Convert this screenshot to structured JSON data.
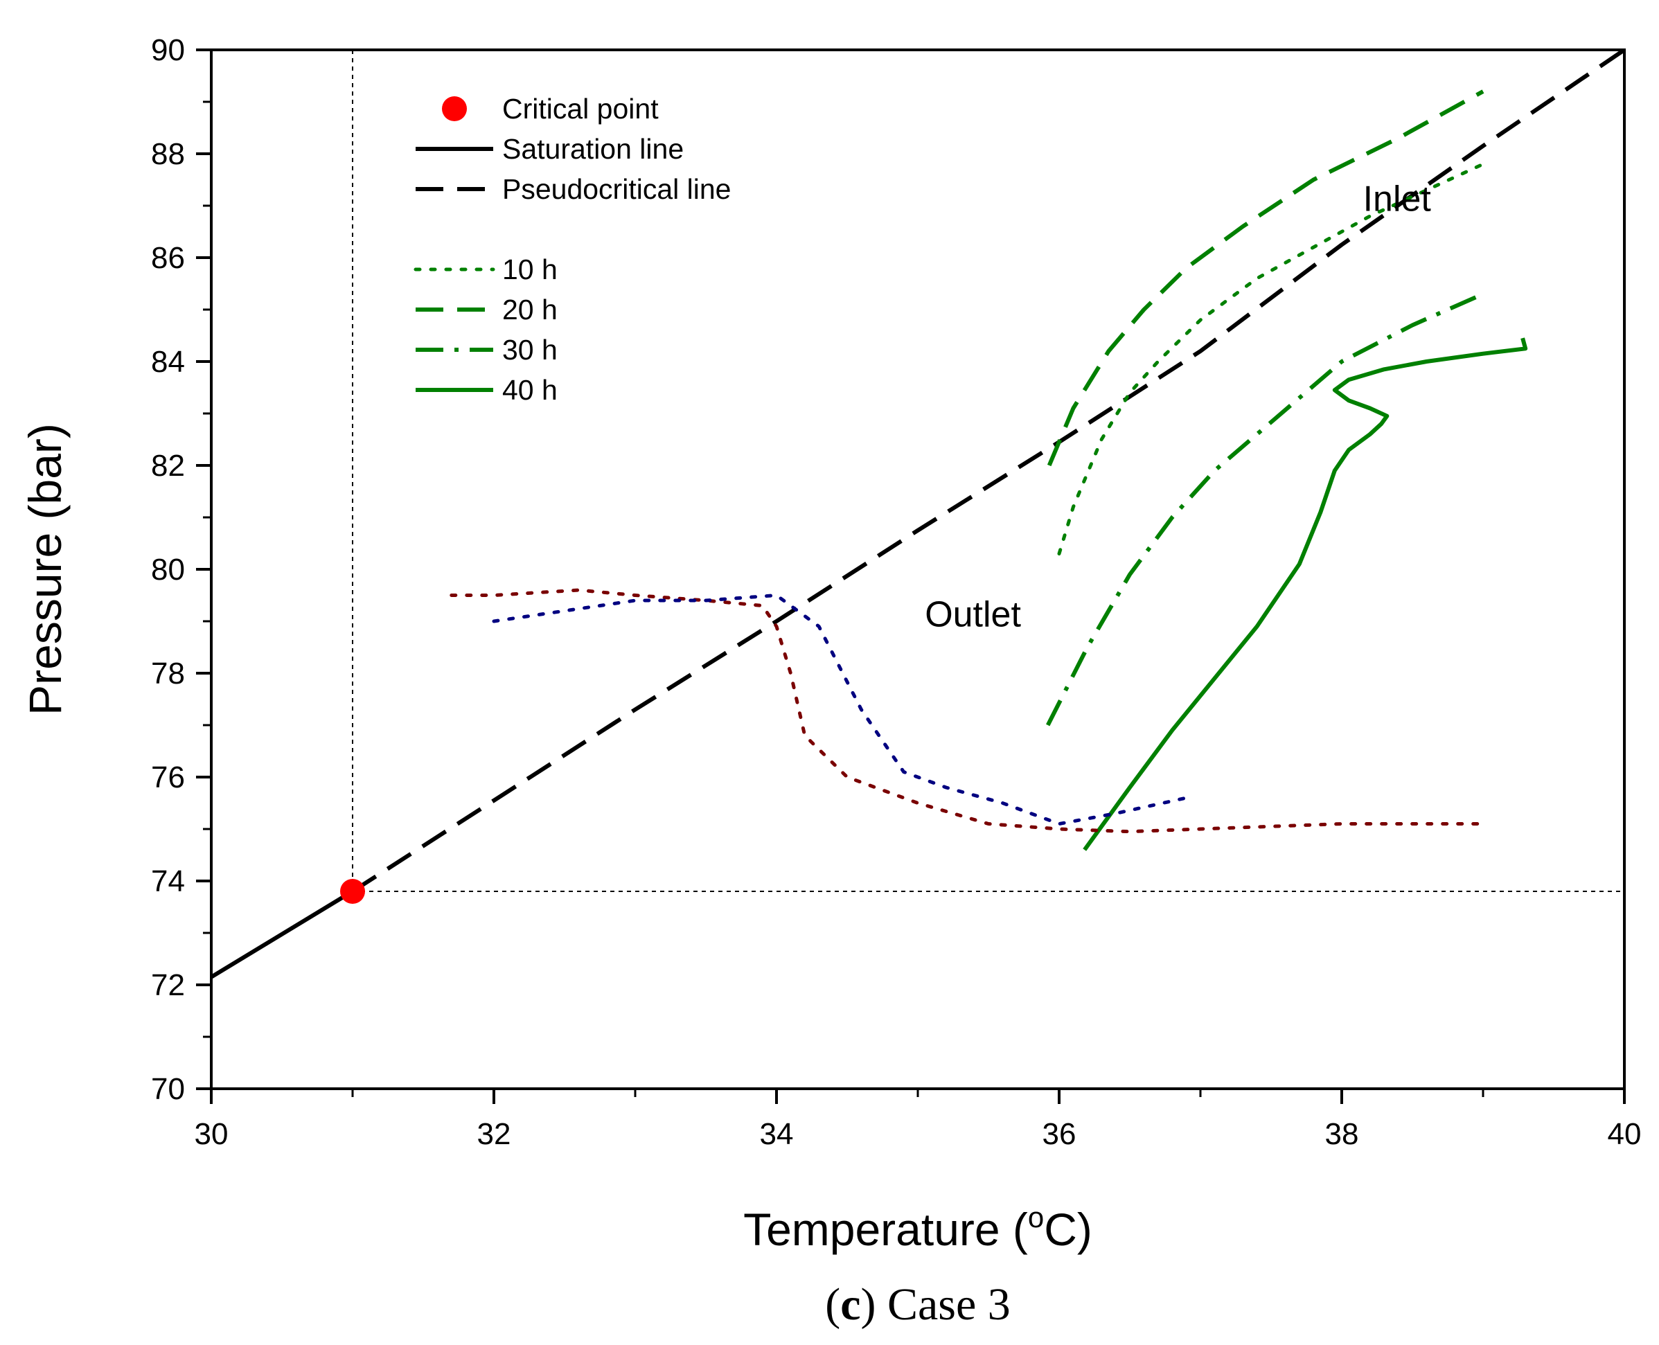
{
  "chart_data": {
    "type": "line",
    "xlabel": "Temperature (",
    "xlabel_sup": "o",
    "xlabel_tail": "C)",
    "ylabel": "Pressure (bar)",
    "xlim": [
      30,
      40
    ],
    "ylim": [
      70,
      90
    ],
    "xticks": [
      30,
      32,
      34,
      36,
      38,
      40
    ],
    "yticks": [
      70,
      72,
      74,
      76,
      78,
      80,
      82,
      84,
      86,
      88,
      90
    ],
    "caption": {
      "open": "(",
      "letter": "c",
      "rest": ") Case 3"
    },
    "annotations": [
      {
        "text": "Inlet",
        "x": 38.15,
        "y": 86.9
      },
      {
        "text": "Outlet",
        "x": 35.05,
        "y": 78.9
      }
    ],
    "reference_lines": [
      {
        "name": "critical-temperature",
        "orientation": "vertical",
        "value": 31.0
      },
      {
        "name": "critical-pressure",
        "orientation": "horizontal",
        "value": 73.8
      }
    ],
    "critical_point": {
      "x": 31.0,
      "y": 73.8,
      "color": "#ff0000"
    },
    "legend": [
      {
        "label": "Critical point",
        "style": "marker",
        "color": "#ff0000"
      },
      {
        "label": "Saturation line",
        "style": "solid",
        "color": "#000000"
      },
      {
        "label": "Pseudocritical line",
        "style": "dashed",
        "color": "#000000"
      },
      {
        "label": "10 h",
        "style": "dotted",
        "color": "#008000"
      },
      {
        "label": "20 h",
        "style": "dashed",
        "color": "#008000"
      },
      {
        "label": "30 h",
        "style": "dashdot",
        "color": "#008000"
      },
      {
        "label": "40 h",
        "style": "solid",
        "color": "#008000"
      }
    ],
    "series": [
      {
        "name": "Saturation line",
        "style": "solid",
        "color": "#000000",
        "x": [
          30.0,
          31.0
        ],
        "y": [
          72.15,
          73.8
        ]
      },
      {
        "name": "Pseudocritical line",
        "style": "dashed",
        "color": "#000000",
        "x": [
          31.0,
          32.0,
          33.0,
          34.0,
          35.0,
          36.0,
          37.0,
          38.0,
          39.0,
          40.0
        ],
        "y": [
          73.8,
          75.55,
          77.3,
          79.0,
          80.75,
          82.45,
          84.2,
          86.25,
          88.15,
          90.0
        ]
      },
      {
        "name": "10 h",
        "style": "dotted",
        "color": "#008000",
        "x": [
          36.0,
          36.1,
          36.3,
          36.5,
          36.7,
          37.0,
          37.4,
          37.8,
          38.2,
          38.6,
          39.0
        ],
        "y": [
          80.3,
          81.2,
          82.5,
          83.4,
          84.0,
          84.8,
          85.6,
          86.2,
          86.8,
          87.3,
          87.8
        ]
      },
      {
        "name": "20 h",
        "style": "dashed",
        "color": "#008000",
        "x": [
          35.93,
          36.1,
          36.35,
          36.6,
          36.9,
          37.3,
          37.8,
          38.4,
          39.0
        ],
        "y": [
          82.0,
          83.1,
          84.2,
          85.0,
          85.8,
          86.6,
          87.5,
          88.3,
          89.2
        ]
      },
      {
        "name": "30 h",
        "style": "dashdot",
        "color": "#008000",
        "x": [
          35.92,
          36.2,
          36.5,
          36.8,
          37.1,
          37.4,
          37.7,
          38.0,
          38.5,
          39.0
        ],
        "y": [
          77.0,
          78.5,
          79.9,
          81.0,
          81.9,
          82.6,
          83.3,
          84.0,
          84.7,
          85.3
        ]
      },
      {
        "name": "40 h",
        "style": "solid",
        "color": "#008000",
        "x": [
          36.18,
          36.5,
          36.8,
          37.1,
          37.4,
          37.7,
          37.85,
          37.95,
          38.05,
          38.2,
          38.28,
          38.32,
          38.2,
          38.05,
          37.95,
          38.05,
          38.3,
          38.6,
          39.0,
          39.3,
          39.28
        ],
        "y": [
          74.6,
          75.8,
          76.9,
          77.9,
          78.9,
          80.1,
          81.1,
          81.9,
          82.3,
          82.6,
          82.8,
          82.95,
          83.1,
          83.25,
          83.45,
          83.65,
          83.85,
          84.0,
          84.15,
          84.25,
          84.45
        ]
      },
      {
        "name": "outlet-red",
        "style": "dotted",
        "color": "#7a0000",
        "x": [
          31.7,
          32.0,
          32.6,
          33.0,
          33.5,
          33.9,
          34.0,
          34.1,
          34.2,
          34.5,
          35.0,
          35.5,
          36.0,
          36.5,
          37.0,
          38.0,
          39.0
        ],
        "y": [
          79.5,
          79.5,
          79.6,
          79.5,
          79.4,
          79.3,
          78.9,
          78.0,
          76.8,
          76.0,
          75.5,
          75.1,
          75.0,
          74.95,
          75.0,
          75.1,
          75.1
        ]
      },
      {
        "name": "outlet-blue",
        "style": "dotted",
        "color": "#000080",
        "x": [
          32.0,
          32.5,
          33.0,
          33.5,
          34.0,
          34.3,
          34.6,
          34.9,
          35.2,
          35.6,
          36.0,
          36.4,
          36.9
        ],
        "y": [
          79.0,
          79.2,
          79.4,
          79.4,
          79.5,
          78.9,
          77.3,
          76.1,
          75.8,
          75.5,
          75.1,
          75.3,
          75.6
        ]
      }
    ]
  }
}
